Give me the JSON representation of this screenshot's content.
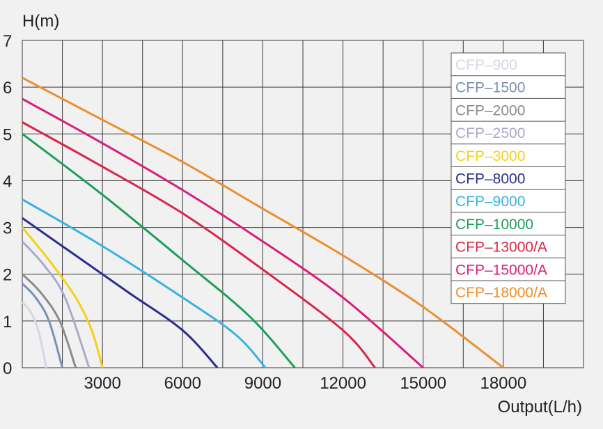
{
  "chart_data": {
    "type": "line",
    "ylabel": "H(m)",
    "xlabel": "Output(L/h)",
    "xlim": [
      0,
      21000
    ],
    "ylim": [
      0,
      7
    ],
    "xticks": [
      3000,
      6000,
      9000,
      12000,
      15000,
      18000
    ],
    "yticks": [
      0,
      1,
      2,
      3,
      4,
      5,
      6,
      7
    ],
    "grid": true,
    "legend_position": "top-right",
    "series": [
      {
        "name": "CFP–900",
        "color": "#d6d6e6",
        "x": [
          0,
          300,
          600,
          900
        ],
        "y": [
          1.4,
          1.2,
          0.8,
          0
        ]
      },
      {
        "name": "CFP–1500",
        "color": "#7b8fb3",
        "x": [
          0,
          500,
          1000,
          1500
        ],
        "y": [
          1.8,
          1.5,
          1.0,
          0
        ]
      },
      {
        "name": "CFP–2000",
        "color": "#8c8c8c",
        "x": [
          0,
          700,
          1400,
          2000
        ],
        "y": [
          2.0,
          1.6,
          1.0,
          0
        ]
      },
      {
        "name": "CFP–2500",
        "color": "#aaaacb",
        "x": [
          0,
          800,
          1600,
          2500
        ],
        "y": [
          2.7,
          2.2,
          1.5,
          0
        ]
      },
      {
        "name": "CFP–3000",
        "color": "#f2d21a",
        "x": [
          0,
          1000,
          2000,
          2600,
          3000
        ],
        "y": [
          3.0,
          2.3,
          1.5,
          0.8,
          0
        ]
      },
      {
        "name": "CFP–8000",
        "color": "#2b2e8c",
        "x": [
          0,
          2000,
          4000,
          6000,
          7300
        ],
        "y": [
          3.2,
          2.4,
          1.6,
          0.8,
          0
        ]
      },
      {
        "name": "CFP–9000",
        "color": "#38b2e3",
        "x": [
          0,
          3000,
          6000,
          8000,
          9100
        ],
        "y": [
          3.6,
          2.6,
          1.5,
          0.7,
          0
        ]
      },
      {
        "name": "CFP–10000",
        "color": "#1e9e5a",
        "x": [
          0,
          3000,
          6000,
          8500,
          10200
        ],
        "y": [
          5.0,
          3.7,
          2.3,
          1.1,
          0
        ]
      },
      {
        "name": "CFP–13000/A",
        "color": "#d8274a",
        "x": [
          0,
          3000,
          6000,
          9000,
          12000,
          13200
        ],
        "y": [
          5.25,
          4.3,
          3.3,
          2.1,
          0.8,
          0
        ]
      },
      {
        "name": "CFP–15000/A",
        "color": "#d81e7a",
        "x": [
          0,
          3000,
          6000,
          9000,
          12000,
          15000
        ],
        "y": [
          5.75,
          4.8,
          3.8,
          2.7,
          1.5,
          0
        ]
      },
      {
        "name": "CFP–18000/A",
        "color": "#ea8f2e",
        "x": [
          0,
          3000,
          6000,
          9000,
          12000,
          15000,
          18000
        ],
        "y": [
          6.2,
          5.3,
          4.4,
          3.4,
          2.4,
          1.3,
          0
        ]
      }
    ]
  }
}
